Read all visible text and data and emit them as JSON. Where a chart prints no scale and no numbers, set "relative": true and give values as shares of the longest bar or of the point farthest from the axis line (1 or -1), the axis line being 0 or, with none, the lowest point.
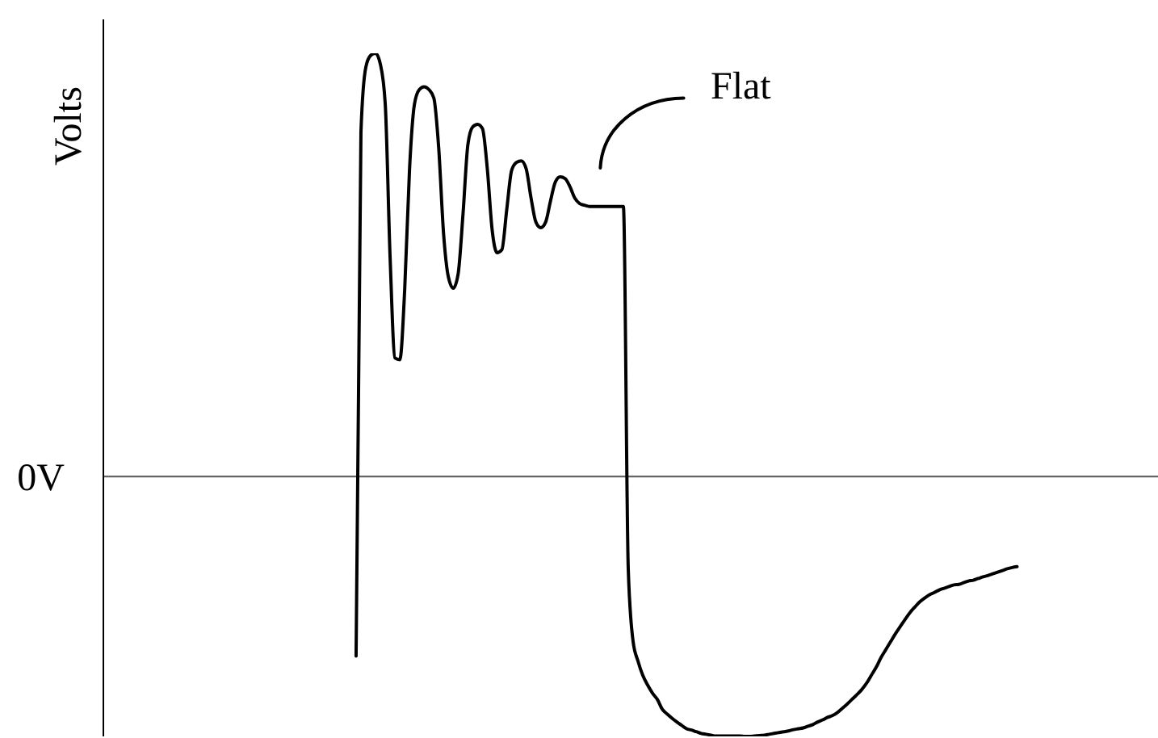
{
  "chart_data": {
    "type": "line",
    "ylabel": "Volts",
    "relative": true,
    "categories": [
      null,
      null,
      null,
      null,
      null,
      null,
      null,
      null,
      null,
      null,
      null,
      null,
      null,
      null,
      null,
      null,
      null,
      null,
      null,
      null,
      null,
      null,
      null,
      null,
      null,
      null,
      null,
      null,
      null,
      null,
      null,
      null,
      null,
      null,
      null,
      null,
      null,
      null,
      null,
      null,
      null,
      null,
      null,
      null,
      null,
      null,
      null,
      null,
      null,
      null,
      null,
      null,
      null,
      null,
      null,
      null,
      null,
      null,
      null,
      null,
      null,
      null,
      null,
      null,
      null,
      null,
      null,
      null,
      null,
      null,
      null,
      null,
      null,
      null,
      null,
      null,
      null,
      null,
      null,
      null,
      null,
      null,
      null,
      null,
      null,
      null,
      null,
      null,
      null,
      null,
      null,
      null,
      null,
      null,
      null,
      null,
      null,
      null,
      null,
      null,
      null,
      null,
      null,
      null,
      null,
      null,
      null,
      null,
      null,
      null,
      null,
      null,
      null,
      null,
      null,
      null,
      null,
      null,
      null,
      null,
      null,
      null,
      null,
      null,
      null,
      null,
      null,
      null,
      null,
      null,
      null,
      null,
      null,
      null,
      null,
      null,
      null,
      null,
      null,
      null,
      null,
      null,
      null,
      null,
      null,
      null,
      null,
      null,
      null,
      null,
      null,
      null,
      null,
      null,
      null,
      null,
      null,
      null,
      null,
      null,
      null,
      null,
      null,
      null,
      null,
      null,
      null,
      null,
      null,
      null,
      null,
      null,
      null,
      null,
      null,
      null,
      null,
      null,
      null,
      null,
      null,
      null,
      null,
      null,
      null,
      null,
      null,
      null,
      null,
      null,
      null,
      null,
      null,
      null,
      null,
      null,
      null,
      null,
      null,
      null,
      null,
      null,
      null,
      null,
      null,
      null,
      null,
      null,
      null,
      null,
      null,
      null,
      null,
      null,
      null,
      null,
      null,
      null
    ],
    "series": [
      {
        "color": "#000000",
        "values": [
          null,
          null,
          null,
          null,
          null,
          null,
          null,
          null,
          null,
          null,
          null,
          null,
          null,
          null,
          null,
          null,
          null,
          null,
          null,
          null,
          null,
          null,
          null,
          null,
          null,
          null,
          null,
          null,
          null,
          null,
          null,
          null,
          null,
          null,
          null,
          null,
          null,
          null,
          null,
          null,
          null,
          null,
          null,
          null,
          null,
          null,
          null,
          null,
          null,
          null,
          null,
          null,
          -0.424,
          0.814,
          0.967,
          0.995,
          1,
          0.974,
          0.88,
          0.517,
          0.28,
          0.276,
          0.441,
          0.727,
          0.879,
          0.914,
          0.921,
          0.914,
          0.894,
          0.776,
          0.574,
          0.471,
          0.445,
          0.479,
          0.62,
          0.784,
          0.826,
          0.832,
          0.822,
          0.727,
          0.582,
          0.529,
          0.536,
          0.631,
          0.723,
          0.742,
          0.746,
          0.727,
          0.658,
          0.601,
          0.588,
          0.601,
          0.651,
          0.696,
          0.708,
          0.704,
          0.685,
          0.658,
          0.645,
          0.641,
          0.638,
          0.638,
          0.638,
          0.638,
          0.638,
          0.638,
          0.638,
          0.638,
          -0.218,
          -0.39,
          -0.436,
          -0.47,
          -0.493,
          -0.512,
          -0.527,
          -0.55,
          -0.561,
          -0.571,
          -0.58,
          -0.588,
          -0.596,
          -0.599,
          -0.603,
          -0.607,
          -0.609,
          -0.611,
          -0.613,
          -0.613,
          -0.613,
          -0.613,
          -0.613,
          -0.613,
          -0.614,
          -0.614,
          -0.613,
          -0.612,
          -0.611,
          -0.609,
          -0.607,
          -0.605,
          -0.603,
          -0.601,
          -0.598,
          -0.596,
          -0.594,
          -0.59,
          -0.586,
          -0.58,
          -0.575,
          -0.569,
          -0.565,
          -0.558,
          -0.548,
          -0.538,
          -0.527,
          -0.516,
          -0.504,
          -0.489,
          -0.47,
          -0.451,
          -0.428,
          -0.409,
          -0.39,
          -0.371,
          -0.354,
          -0.337,
          -0.321,
          -0.308,
          -0.296,
          -0.287,
          -0.279,
          -0.274,
          -0.268,
          -0.264,
          -0.26,
          -0.256,
          -0.255,
          -0.251,
          -0.247,
          -0.245,
          -0.241,
          -0.237,
          -0.234,
          -0.23,
          -0.226,
          -0.222,
          -0.218,
          -0.215,
          -0.213,
          null,
          null,
          null,
          null,
          null,
          null,
          null,
          null,
          null,
          null,
          null,
          null,
          null,
          null,
          null,
          null,
          null,
          null,
          null,
          null,
          null,
          null,
          null,
          null,
          null,
          null,
          null,
          null,
          null
        ]
      }
    ],
    "ref_lines": [
      {
        "axis": "y",
        "value": 0,
        "label": "0V",
        "color": "#666666"
      }
    ],
    "annotations": [
      "Flat"
    ]
  }
}
